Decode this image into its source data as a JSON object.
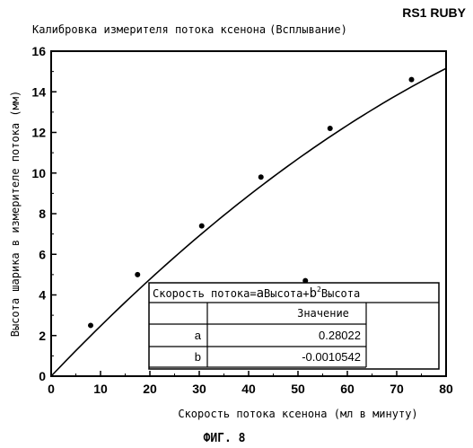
{
  "header": {
    "tag": "RS1 RUBY",
    "title": "Калибровка измерителя потока ксенона",
    "title_suffix": "(Всплывание)"
  },
  "figure_caption": "ФИГ. 8",
  "fit_table": {
    "formula_prefix": "Скорость потока=",
    "formula_a": "a",
    "formula_mid": "Высота+",
    "formula_b": "b",
    "formula_sup": "2",
    "formula_suffix": "Высота",
    "column_header": "Значение",
    "rows": [
      {
        "param": "a",
        "value": "0.28022"
      },
      {
        "param": "b",
        "value": "-0.0010542"
      }
    ]
  },
  "chart_data": {
    "type": "scatter",
    "title": "Калибровка измерителя потока ксенона (Всплывание)",
    "xlabel": "Скорость потока ксенона (мл в минуту)",
    "ylabel": "Высота шарика в измерителе потока (мм)",
    "xlim": [
      0,
      80
    ],
    "ylim": [
      0,
      16
    ],
    "x_ticks": [
      "0",
      "10",
      "20",
      "30",
      "40",
      "50",
      "60",
      "70",
      "80"
    ],
    "y_ticks": [
      "0",
      "2",
      "4",
      "6",
      "8",
      "10",
      "12",
      "14",
      "16"
    ],
    "grid": false,
    "series": [
      {
        "points": [
          {
            "x": 8,
            "y": 2.5
          },
          {
            "x": 17.5,
            "y": 5.0
          },
          {
            "x": 30.5,
            "y": 7.4
          },
          {
            "x": 42.5,
            "y": 9.8
          },
          {
            "x": 51.5,
            "y": 4.7
          },
          {
            "x": 56.5,
            "y": 12.2
          },
          {
            "x": 73,
            "y": 14.6
          }
        ]
      }
    ],
    "fit": {
      "model": "y = a*x + b*x^2",
      "a": 0.28022,
      "b": -0.0010542
    }
  }
}
